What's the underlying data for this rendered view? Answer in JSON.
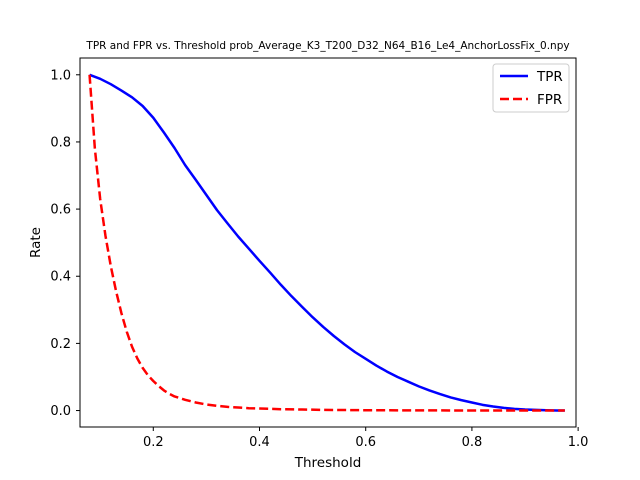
{
  "chart_data": {
    "type": "line",
    "title": "TPR and FPR vs. Threshold prob_Average_K3_T200_D32_N64_B16_Le4_AnchorLossFix_0.npy",
    "xlabel": "Threshold",
    "ylabel": "Rate",
    "xlim": [
      0.062,
      0.996
    ],
    "ylim": [
      -0.049,
      1.05
    ],
    "xticks": [
      0.2,
      0.4,
      0.6,
      0.8,
      1.0
    ],
    "xtick_labels": [
      "0.2",
      "0.4",
      "0.6",
      "0.8",
      "1.0"
    ],
    "yticks": [
      0.0,
      0.2,
      0.4,
      0.6,
      0.8,
      1.0
    ],
    "ytick_labels": [
      "0.0",
      "0.2",
      "0.4",
      "0.6",
      "0.8",
      "1.0"
    ],
    "grid": false,
    "legend_position": "top-right",
    "series": [
      {
        "name": "TPR",
        "color": "#0000ff",
        "linestyle": "solid",
        "x": [
          0.08,
          0.1,
          0.12,
          0.14,
          0.16,
          0.18,
          0.2,
          0.22,
          0.24,
          0.26,
          0.28,
          0.3,
          0.32,
          0.34,
          0.36,
          0.38,
          0.4,
          0.42,
          0.44,
          0.46,
          0.48,
          0.5,
          0.52,
          0.54,
          0.56,
          0.58,
          0.6,
          0.62,
          0.64,
          0.66,
          0.68,
          0.7,
          0.72,
          0.74,
          0.76,
          0.78,
          0.8,
          0.82,
          0.84,
          0.86,
          0.88,
          0.9,
          0.92,
          0.94,
          0.96,
          0.975
        ],
        "y": [
          1.0,
          0.988,
          0.972,
          0.953,
          0.933,
          0.907,
          0.872,
          0.828,
          0.782,
          0.731,
          0.687,
          0.642,
          0.597,
          0.557,
          0.518,
          0.482,
          0.446,
          0.411,
          0.375,
          0.341,
          0.309,
          0.278,
          0.249,
          0.222,
          0.197,
          0.174,
          0.154,
          0.134,
          0.116,
          0.1,
          0.086,
          0.072,
          0.06,
          0.049,
          0.039,
          0.031,
          0.024,
          0.017,
          0.012,
          0.008,
          0.005,
          0.003,
          0.002,
          0.001,
          0.0003,
          0.0
        ]
      },
      {
        "name": "FPR",
        "color": "#ff0000",
        "linestyle": "dashed",
        "x": [
          0.08,
          0.09,
          0.1,
          0.11,
          0.12,
          0.13,
          0.14,
          0.15,
          0.16,
          0.17,
          0.18,
          0.19,
          0.2,
          0.21,
          0.22,
          0.23,
          0.24,
          0.26,
          0.28,
          0.3,
          0.32,
          0.34,
          0.36,
          0.38,
          0.4,
          0.44,
          0.48,
          0.52,
          0.56,
          0.6,
          0.7,
          0.8,
          0.9,
          0.975
        ],
        "y": [
          1.0,
          0.78,
          0.63,
          0.52,
          0.43,
          0.355,
          0.29,
          0.235,
          0.19,
          0.155,
          0.127,
          0.105,
          0.088,
          0.073,
          0.06,
          0.05,
          0.042,
          0.032,
          0.024,
          0.018,
          0.014,
          0.011,
          0.009,
          0.007,
          0.006,
          0.004,
          0.003,
          0.002,
          0.0015,
          0.001,
          0.0005,
          0.0002,
          0.0001,
          0.0
        ]
      }
    ]
  }
}
